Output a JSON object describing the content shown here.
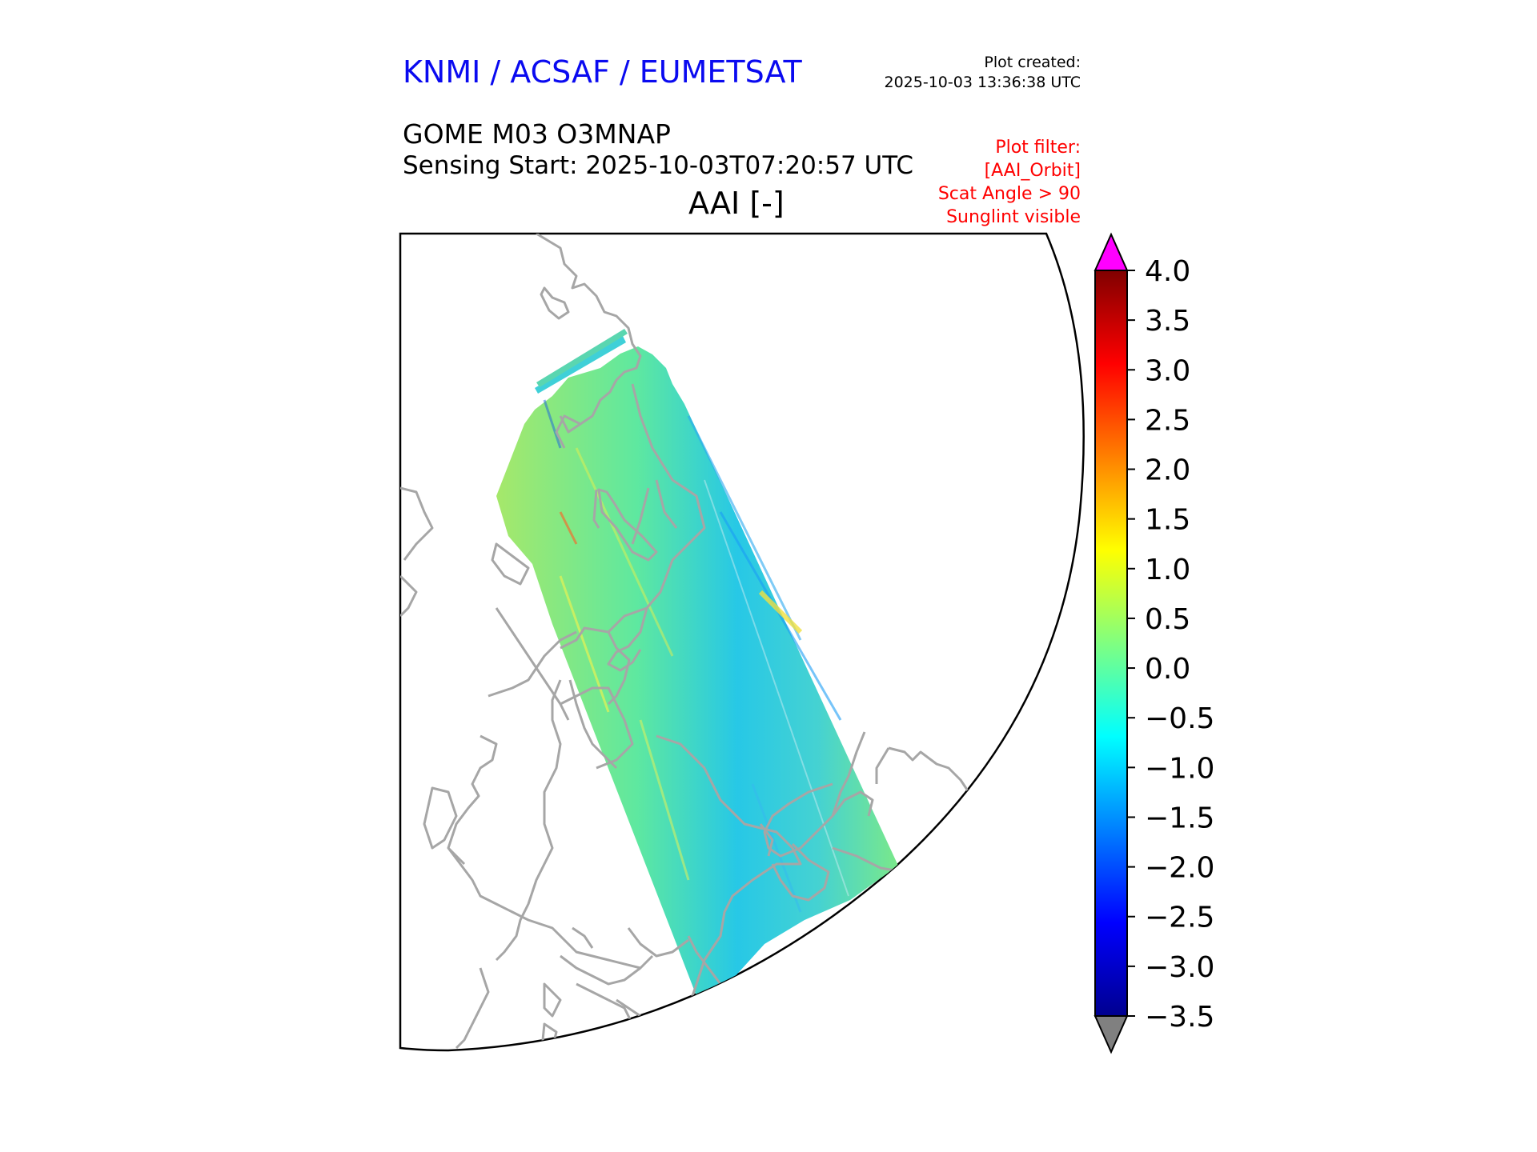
{
  "header": {
    "org_title": "KNMI / ACSAF / EUMETSAT",
    "plot_created_label": "Plot created:",
    "plot_created_time": "2025-10-03 13:36:38 UTC",
    "product": "GOME M03 O3MNAP",
    "sensing_start": "Sensing Start: 2025-10-03T07:20:57 UTC",
    "variable": "AAI [-]"
  },
  "filter": {
    "title": "Plot filter:",
    "lines": [
      "[AAI_Orbit]",
      "Scat Angle > 90",
      "Sunglint visible"
    ]
  },
  "colorbar": {
    "min": -3.5,
    "max": 4.0,
    "ticks": [
      "4.0",
      "3.5",
      "3.0",
      "2.5",
      "2.0",
      "1.5",
      "1.0",
      "0.5",
      "0.0",
      "−0.5",
      "−1.0",
      "−1.5",
      "−2.0",
      "−2.5",
      "−3.0",
      "−3.5"
    ],
    "over_color": "#ff00ff",
    "under_color": "#808080",
    "stops": [
      "#00008f",
      "#0000ff",
      "#0080ff",
      "#00ffff",
      "#80ff80",
      "#ffff00",
      "#ff8000",
      "#ff0000",
      "#800000"
    ]
  },
  "map": {
    "coastline_color": "#a6a6a6",
    "swath_background": "#59e8a0"
  }
}
